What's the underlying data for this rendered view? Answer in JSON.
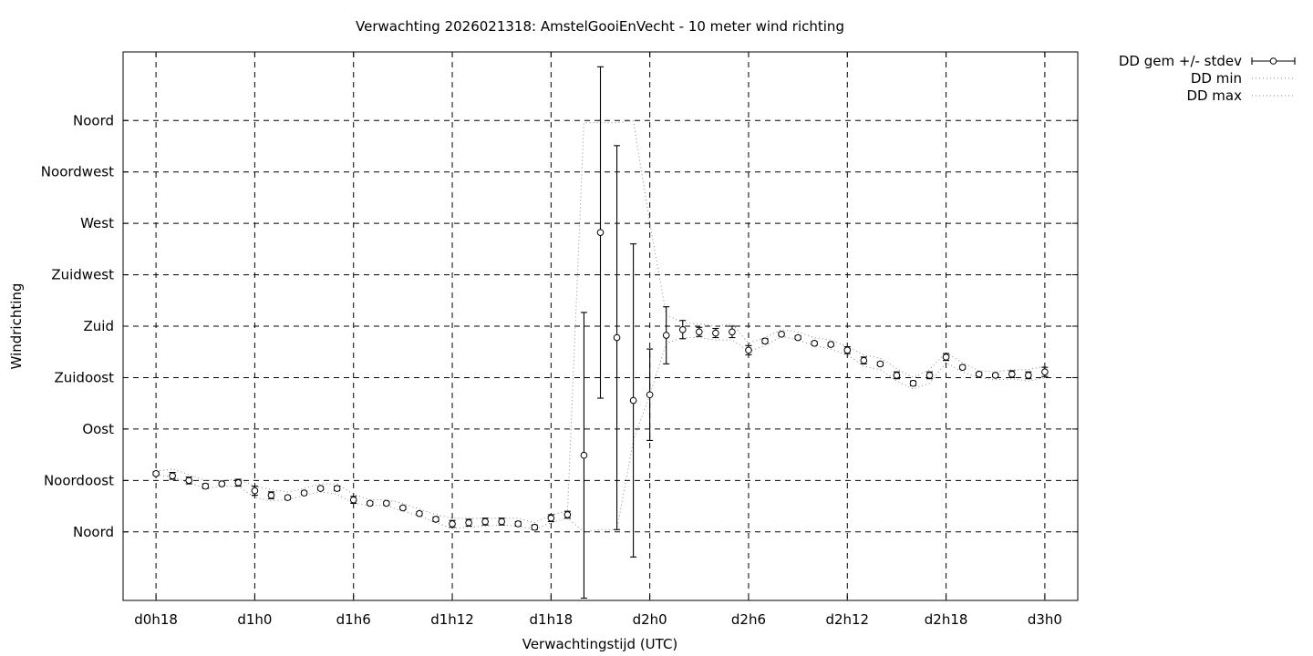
{
  "chart_data": {
    "type": "line",
    "title": "Verwachting 2026021318: AmstelGooiEnVecht - 10 meter wind richting",
    "xlabel": "Verwachtingstijd (UTC)",
    "ylabel": "Windrichting",
    "x_unit": "forecast hour",
    "xlim": [
      16,
      74
    ],
    "ylim": [
      -60,
      420
    ],
    "x_ticks": [
      {
        "value": 18,
        "label": "d0h18"
      },
      {
        "value": 24,
        "label": "d1h0"
      },
      {
        "value": 30,
        "label": "d1h6"
      },
      {
        "value": 36,
        "label": "d1h12"
      },
      {
        "value": 42,
        "label": "d1h18"
      },
      {
        "value": 48,
        "label": "d2h0"
      },
      {
        "value": 54,
        "label": "d2h6"
      },
      {
        "value": 60,
        "label": "d2h12"
      },
      {
        "value": 66,
        "label": "d2h18"
      },
      {
        "value": 72,
        "label": "d3h0"
      }
    ],
    "y_ticks": [
      {
        "value": 0,
        "label": "Noord"
      },
      {
        "value": 45,
        "label": "Noordoost"
      },
      {
        "value": 90,
        "label": "Oost"
      },
      {
        "value": 135,
        "label": "Zuidoost"
      },
      {
        "value": 180,
        "label": "Zuid"
      },
      {
        "value": 225,
        "label": "Zuidwest"
      },
      {
        "value": 270,
        "label": "West"
      },
      {
        "value": 315,
        "label": "Noordwest"
      },
      {
        "value": 360,
        "label": "Noord"
      }
    ],
    "grid": true,
    "legend_position": "top-right, outside plot",
    "series": [
      {
        "name": "DD gem +/- stdev",
        "style": "points with error bars",
        "x": [
          18,
          19,
          20,
          21,
          22,
          23,
          24,
          25,
          26,
          27,
          28,
          29,
          30,
          31,
          32,
          33,
          34,
          35,
          36,
          37,
          38,
          39,
          40,
          41,
          42,
          43,
          44,
          45,
          46,
          47,
          48,
          49,
          50,
          51,
          52,
          53,
          54,
          55,
          56,
          57,
          58,
          59,
          60,
          61,
          62,
          63,
          64,
          65,
          66,
          67,
          68,
          69,
          70,
          71,
          72
        ],
        "mean": [
          51,
          49,
          45,
          40,
          42,
          43,
          36,
          32,
          30,
          34,
          38,
          38,
          28,
          25,
          25,
          21,
          16,
          11,
          7,
          8,
          9,
          9,
          7,
          4,
          12,
          15,
          67,
          262,
          170,
          115,
          120,
          172,
          177,
          175,
          174,
          175,
          159,
          167,
          173,
          170,
          165,
          164,
          159,
          150,
          147,
          137,
          130,
          137,
          153,
          144,
          138,
          137,
          138,
          137,
          140
        ],
        "stdev": [
          1.5,
          3,
          3,
          2,
          1.5,
          3,
          4,
          3,
          1.5,
          1.5,
          1.5,
          2,
          3,
          1.5,
          1.5,
          1.5,
          1.5,
          2,
          3,
          3,
          3,
          3,
          2,
          2,
          3,
          3,
          125,
          145,
          168,
          137,
          40,
          25,
          8,
          4,
          4,
          5,
          4,
          2,
          1.5,
          1.5,
          1.5,
          1.5,
          3,
          3,
          1.5,
          3,
          2,
          3,
          3,
          1.5,
          1.5,
          1.5,
          3,
          3,
          4
        ]
      },
      {
        "name": "DD min",
        "style": "dotted line",
        "x": [
          18,
          19,
          20,
          21,
          22,
          23,
          24,
          25,
          26,
          27,
          28,
          29,
          30,
          31,
          32,
          33,
          34,
          35,
          36,
          37,
          38,
          39,
          40,
          41,
          42,
          43,
          44,
          45,
          46,
          47,
          48,
          49,
          50,
          51,
          52,
          53,
          54,
          55,
          56,
          57,
          58,
          59,
          60,
          61,
          62,
          63,
          64,
          65,
          66,
          67,
          68,
          69,
          70,
          71,
          72
        ],
        "values": [
          50,
          48,
          43,
          38,
          40,
          40,
          30,
          27,
          28,
          32,
          35,
          33,
          25,
          23,
          23,
          18,
          14,
          8,
          3,
          4,
          5,
          6,
          5,
          2,
          8,
          12,
          0,
          2,
          2,
          80,
          120,
          165,
          170,
          170,
          168,
          168,
          158,
          163,
          171,
          168,
          163,
          160,
          155,
          145,
          142,
          132,
          125,
          130,
          148,
          140,
          135,
          133,
          134,
          132,
          135
        ]
      },
      {
        "name": "DD max",
        "style": "dotted line",
        "x": [
          18,
          19,
          20,
          21,
          22,
          23,
          24,
          25,
          26,
          27,
          28,
          29,
          30,
          31,
          32,
          33,
          34,
          35,
          36,
          37,
          38,
          39,
          40,
          41,
          42,
          43,
          44,
          45,
          46,
          47,
          48,
          49,
          50,
          51,
          52,
          53,
          54,
          55,
          56,
          57,
          58,
          59,
          60,
          61,
          62,
          63,
          64,
          65,
          66,
          67,
          68,
          69,
          70,
          71,
          72
        ],
        "values": [
          53,
          55,
          50,
          45,
          45,
          46,
          40,
          37,
          35,
          38,
          42,
          42,
          33,
          28,
          28,
          25,
          20,
          15,
          12,
          12,
          12,
          12,
          12,
          8,
          15,
          18,
          358,
          358,
          358,
          360,
          270,
          190,
          183,
          182,
          180,
          182,
          165,
          170,
          177,
          175,
          170,
          168,
          162,
          155,
          152,
          143,
          135,
          142,
          157,
          148,
          141,
          140,
          142,
          142,
          145
        ]
      }
    ]
  }
}
